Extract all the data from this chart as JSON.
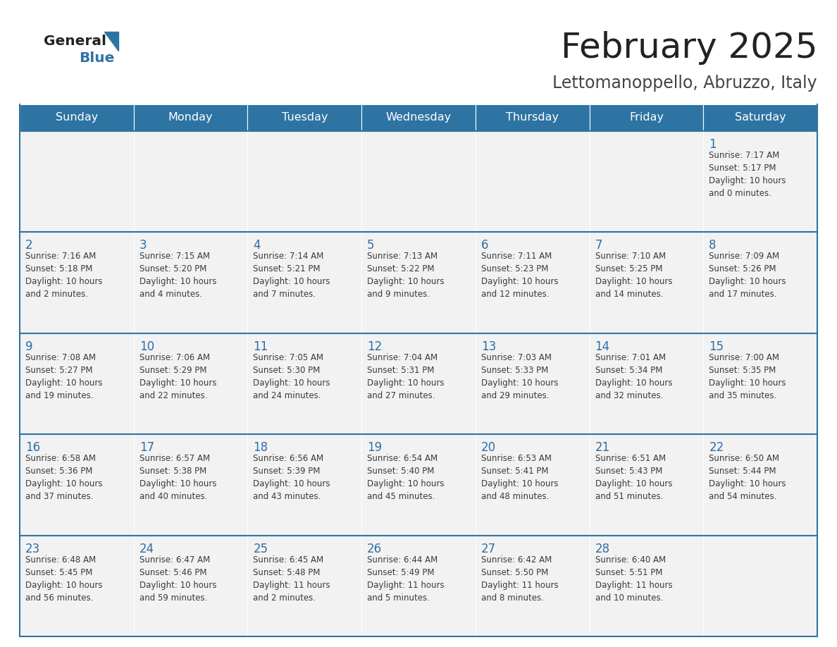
{
  "title": "February 2025",
  "subtitle": "Lettomanoppello, Abruzzo, Italy",
  "days_of_week": [
    "Sunday",
    "Monday",
    "Tuesday",
    "Wednesday",
    "Thursday",
    "Friday",
    "Saturday"
  ],
  "header_bg": "#2e74a3",
  "header_text": "#ffffff",
  "cell_bg": "#f2f2f2",
  "border_color": "#2e74a3",
  "day_num_color": "#2e6ea6",
  "cell_text_color": "#3a3a3a",
  "title_color": "#222222",
  "subtitle_color": "#444444",
  "logo_text_color": "#222222",
  "logo_blue_color": "#2e74a3",
  "calendar": [
    [
      {
        "day": null,
        "info": null
      },
      {
        "day": null,
        "info": null
      },
      {
        "day": null,
        "info": null
      },
      {
        "day": null,
        "info": null
      },
      {
        "day": null,
        "info": null
      },
      {
        "day": null,
        "info": null
      },
      {
        "day": 1,
        "info": "Sunrise: 7:17 AM\nSunset: 5:17 PM\nDaylight: 10 hours\nand 0 minutes."
      }
    ],
    [
      {
        "day": 2,
        "info": "Sunrise: 7:16 AM\nSunset: 5:18 PM\nDaylight: 10 hours\nand 2 minutes."
      },
      {
        "day": 3,
        "info": "Sunrise: 7:15 AM\nSunset: 5:20 PM\nDaylight: 10 hours\nand 4 minutes."
      },
      {
        "day": 4,
        "info": "Sunrise: 7:14 AM\nSunset: 5:21 PM\nDaylight: 10 hours\nand 7 minutes."
      },
      {
        "day": 5,
        "info": "Sunrise: 7:13 AM\nSunset: 5:22 PM\nDaylight: 10 hours\nand 9 minutes."
      },
      {
        "day": 6,
        "info": "Sunrise: 7:11 AM\nSunset: 5:23 PM\nDaylight: 10 hours\nand 12 minutes."
      },
      {
        "day": 7,
        "info": "Sunrise: 7:10 AM\nSunset: 5:25 PM\nDaylight: 10 hours\nand 14 minutes."
      },
      {
        "day": 8,
        "info": "Sunrise: 7:09 AM\nSunset: 5:26 PM\nDaylight: 10 hours\nand 17 minutes."
      }
    ],
    [
      {
        "day": 9,
        "info": "Sunrise: 7:08 AM\nSunset: 5:27 PM\nDaylight: 10 hours\nand 19 minutes."
      },
      {
        "day": 10,
        "info": "Sunrise: 7:06 AM\nSunset: 5:29 PM\nDaylight: 10 hours\nand 22 minutes."
      },
      {
        "day": 11,
        "info": "Sunrise: 7:05 AM\nSunset: 5:30 PM\nDaylight: 10 hours\nand 24 minutes."
      },
      {
        "day": 12,
        "info": "Sunrise: 7:04 AM\nSunset: 5:31 PM\nDaylight: 10 hours\nand 27 minutes."
      },
      {
        "day": 13,
        "info": "Sunrise: 7:03 AM\nSunset: 5:33 PM\nDaylight: 10 hours\nand 29 minutes."
      },
      {
        "day": 14,
        "info": "Sunrise: 7:01 AM\nSunset: 5:34 PM\nDaylight: 10 hours\nand 32 minutes."
      },
      {
        "day": 15,
        "info": "Sunrise: 7:00 AM\nSunset: 5:35 PM\nDaylight: 10 hours\nand 35 minutes."
      }
    ],
    [
      {
        "day": 16,
        "info": "Sunrise: 6:58 AM\nSunset: 5:36 PM\nDaylight: 10 hours\nand 37 minutes."
      },
      {
        "day": 17,
        "info": "Sunrise: 6:57 AM\nSunset: 5:38 PM\nDaylight: 10 hours\nand 40 minutes."
      },
      {
        "day": 18,
        "info": "Sunrise: 6:56 AM\nSunset: 5:39 PM\nDaylight: 10 hours\nand 43 minutes."
      },
      {
        "day": 19,
        "info": "Sunrise: 6:54 AM\nSunset: 5:40 PM\nDaylight: 10 hours\nand 45 minutes."
      },
      {
        "day": 20,
        "info": "Sunrise: 6:53 AM\nSunset: 5:41 PM\nDaylight: 10 hours\nand 48 minutes."
      },
      {
        "day": 21,
        "info": "Sunrise: 6:51 AM\nSunset: 5:43 PM\nDaylight: 10 hours\nand 51 minutes."
      },
      {
        "day": 22,
        "info": "Sunrise: 6:50 AM\nSunset: 5:44 PM\nDaylight: 10 hours\nand 54 minutes."
      }
    ],
    [
      {
        "day": 23,
        "info": "Sunrise: 6:48 AM\nSunset: 5:45 PM\nDaylight: 10 hours\nand 56 minutes."
      },
      {
        "day": 24,
        "info": "Sunrise: 6:47 AM\nSunset: 5:46 PM\nDaylight: 10 hours\nand 59 minutes."
      },
      {
        "day": 25,
        "info": "Sunrise: 6:45 AM\nSunset: 5:48 PM\nDaylight: 11 hours\nand 2 minutes."
      },
      {
        "day": 26,
        "info": "Sunrise: 6:44 AM\nSunset: 5:49 PM\nDaylight: 11 hours\nand 5 minutes."
      },
      {
        "day": 27,
        "info": "Sunrise: 6:42 AM\nSunset: 5:50 PM\nDaylight: 11 hours\nand 8 minutes."
      },
      {
        "day": 28,
        "info": "Sunrise: 6:40 AM\nSunset: 5:51 PM\nDaylight: 11 hours\nand 10 minutes."
      },
      {
        "day": null,
        "info": null
      }
    ]
  ]
}
